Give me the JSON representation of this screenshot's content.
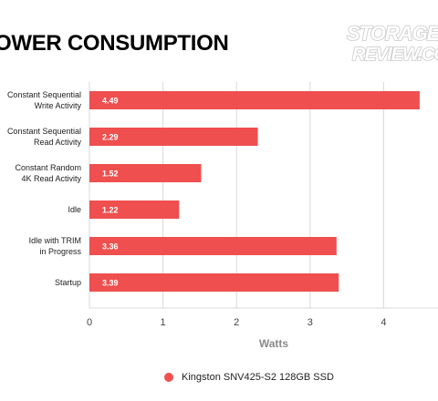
{
  "header": {
    "title": "OWER CONSUMPTION",
    "logo_line1": "STORAGE",
    "logo_line2": "REVIEW.CO"
  },
  "colors": {
    "bar": "#ef4f4f",
    "grid": "#d9d9d9",
    "logo": "#c9c9c9"
  },
  "chart_data": {
    "type": "bar",
    "orientation": "horizontal",
    "categories": [
      [
        "Constant Sequential",
        "Write Activity"
      ],
      [
        "Constant Sequential",
        "Read Activity"
      ],
      [
        "Constant Random",
        "4K Read Activity"
      ],
      [
        "Idle"
      ],
      [
        "Idle with TRIM",
        "in Progress"
      ],
      [
        "Startup"
      ]
    ],
    "series": [
      {
        "name": "Kingston SNV425-S2 128GB SSD",
        "values": [
          4.49,
          2.29,
          1.52,
          1.22,
          3.36,
          3.39
        ],
        "labels": [
          "4.49",
          "2.29",
          "1.52",
          "1.22",
          "3.36",
          "3.39"
        ]
      }
    ],
    "xlabel": "Watts",
    "xticks": [
      "0",
      "1",
      "2",
      "3",
      "4"
    ],
    "xlim": [
      0,
      5
    ],
    "grid": true,
    "legend_position": "bottom"
  }
}
